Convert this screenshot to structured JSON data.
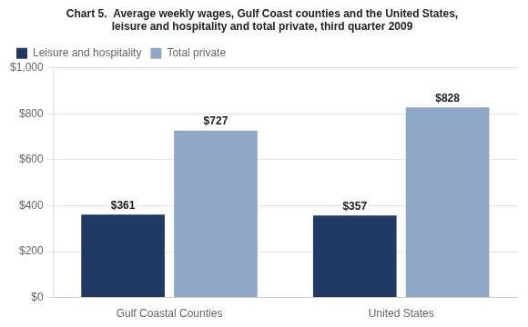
{
  "chart_data": {
    "type": "bar",
    "title": "Chart 5.  Average weekly wages, Gulf Coast counties and the United States,\nleisure and hospitality and total private, third quarter 2009",
    "categories": [
      "Gulf Coastal Counties",
      "United States"
    ],
    "series": [
      {
        "name": "Leisure and hospitality",
        "color": "#1F3864",
        "values": [
          361,
          357
        ],
        "value_labels": [
          "$361",
          "$357"
        ]
      },
      {
        "name": "Total private",
        "color": "#8FA8C8",
        "values": [
          727,
          828
        ],
        "value_labels": [
          "$727",
          "$828"
        ]
      }
    ],
    "ylim": [
      0,
      1000
    ],
    "yticks": [
      {
        "value": 0,
        "label": "$0"
      },
      {
        "value": 200,
        "label": "$200"
      },
      {
        "value": 400,
        "label": "$400"
      },
      {
        "value": 600,
        "label": "$600"
      },
      {
        "value": 800,
        "label": "$800"
      },
      {
        "value": 1000,
        "label": "$1,000"
      }
    ],
    "grid": true,
    "legend": "upper left",
    "data_labels": true
  }
}
